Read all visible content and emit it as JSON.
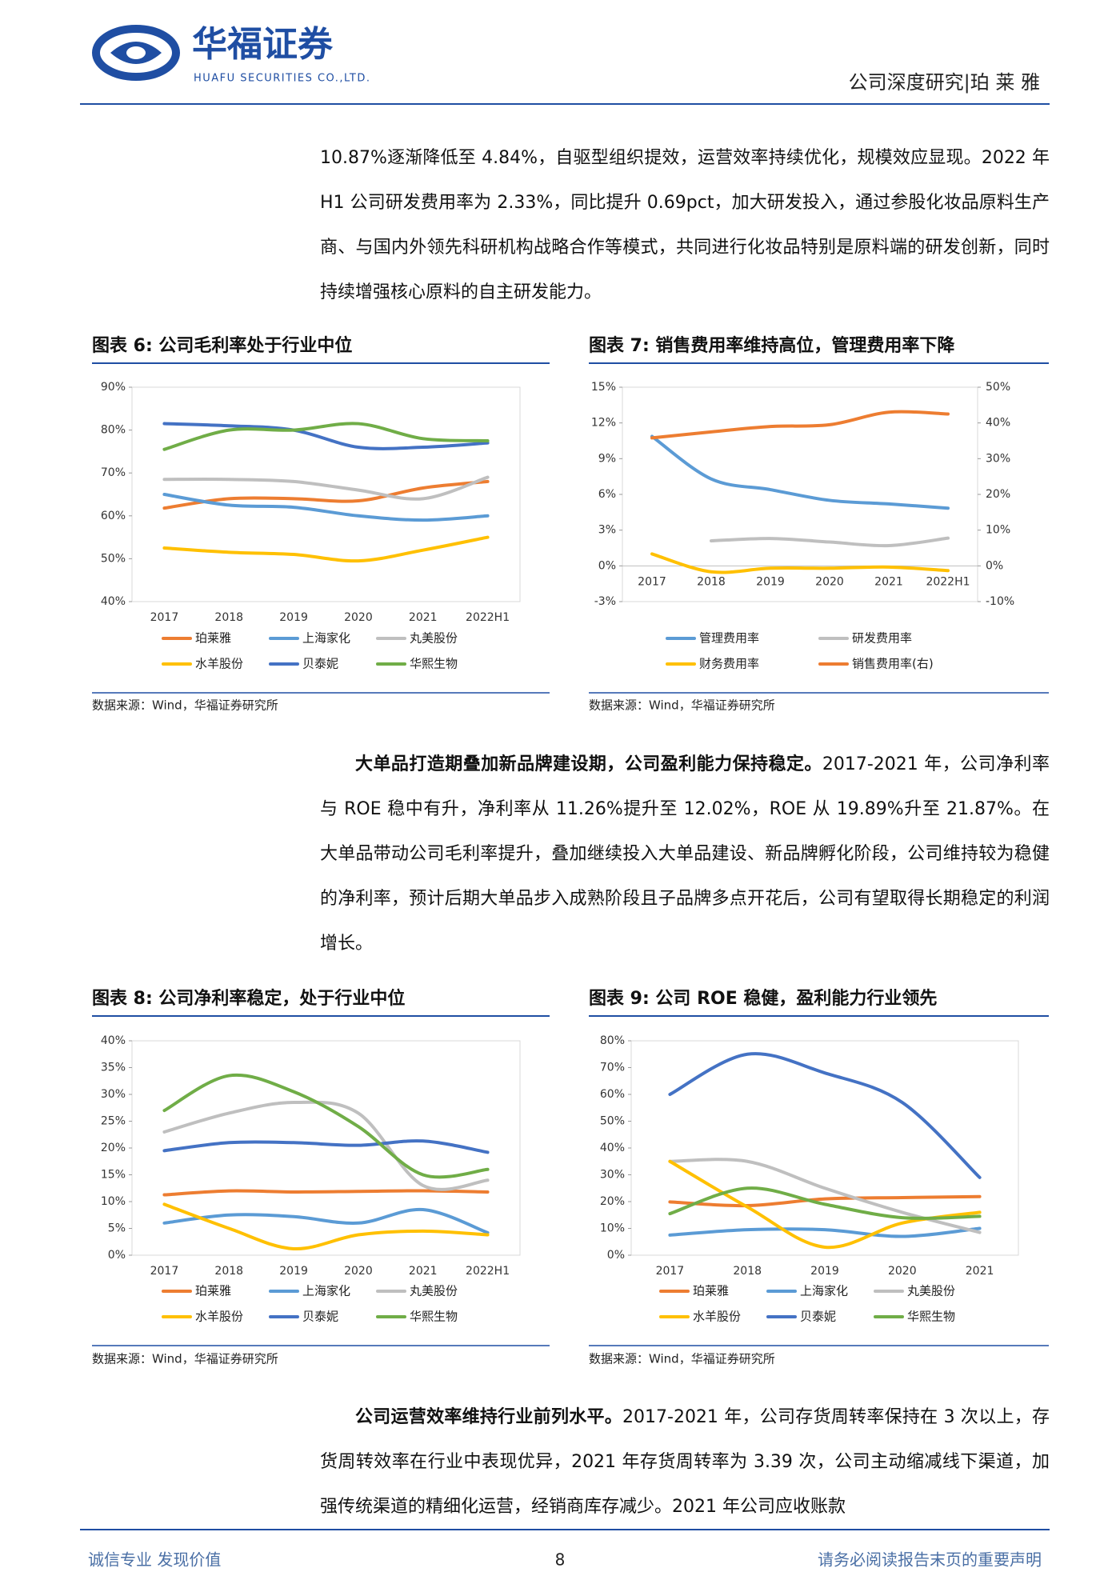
{
  "header": {
    "logo_cn": "华福证券",
    "logo_en": "HUAFU SECURITIES CO.,LTD.",
    "section": "公司深度研究|珀 莱 雅"
  },
  "paragraphs": [
    {
      "text": "10.87%逐渐降低至 4.84%，自驱型组织提效，运营效率持续优化，规模效应显现。2022 年 H1 公司研发费用率为 2.33%，同比提升 0.69pct，加大研发投入，通过参股化妆品原料生产商、与国内外领先科研机构战略合作等模式，共同进行化妆品特别是原料端的研发创新，同时持续增强核心原料的自主研发能力。"
    },
    {
      "lead": "大单品打造期叠加新品牌建设期，公司盈利能力保持稳定。",
      "text": "2017-2021 年，公司净利率与 ROE 稳中有升，净利率从 11.26%提升至 12.02%，ROE 从 19.89%升至 21.87%。在大单品带动公司毛利率提升，叠加继续投入大单品建设、新品牌孵化阶段，公司维持较为稳健的净利率，预计后期大单品步入成熟阶段且子品牌多点开花后，公司有望取得长期稳定的利润增长。"
    },
    {
      "lead": "公司运营效率维持行业前列水平。",
      "text": "2017-2021 年，公司存货周转率保持在 3 次以上，存货周转效率在行业中表现优异，2021 年存货周转率为 3.39 次，公司主动缩减线下渠道，加强传统渠道的精细化运营，经销商库存减少。2021 年公司应收账款"
    }
  ],
  "chart_data": [
    {
      "type": "line",
      "title": "图表 6:  公司毛利率处于行业中位",
      "source": "数据来源：Wind，华福证券研究所",
      "categories": [
        "2017",
        "2018",
        "2019",
        "2020",
        "2021",
        "2022H1"
      ],
      "ylim": [
        40,
        90
      ],
      "yticks": [
        {
          "value": 40,
          "label": "40%"
        },
        {
          "value": 50,
          "label": "50%"
        },
        {
          "value": 60,
          "label": "60%"
        },
        {
          "value": 70,
          "label": "70%"
        },
        {
          "value": 80,
          "label": "80%"
        },
        {
          "value": 90,
          "label": "90%"
        }
      ],
      "grid": false,
      "series": [
        {
          "name": "珀莱雅",
          "color": "#ED7D31",
          "values": [
            61.8,
            64,
            64,
            63.5,
            66.5,
            68
          ]
        },
        {
          "name": "上海家化",
          "color": "#5B9BD5",
          "values": [
            65,
            62.5,
            62,
            60,
            59,
            60
          ]
        },
        {
          "name": "丸美股份",
          "color": "#BFBFBF",
          "values": [
            68.5,
            68.5,
            68,
            66,
            64,
            69
          ]
        },
        {
          "name": "水羊股份",
          "color": "#FFC000",
          "values": [
            52.5,
            51.5,
            51,
            49.5,
            52,
            55
          ]
        },
        {
          "name": "贝泰妮",
          "color": "#4472C4",
          "values": [
            81.5,
            81,
            80,
            76,
            76,
            77
          ]
        },
        {
          "name": "华熙生物",
          "color": "#70AD47",
          "values": [
            75.5,
            80,
            80,
            81.5,
            78,
            77.5
          ]
        }
      ]
    },
    {
      "type": "line",
      "title": "图表 7:  销售费用率维持高位，管理费用率下降",
      "source": "数据来源：Wind，华福证券研究所",
      "categories": [
        "2017",
        "2018",
        "2019",
        "2020",
        "2021",
        "2022H1"
      ],
      "ylim": [
        -3,
        15
      ],
      "yticks": [
        {
          "value": -3,
          "label": "-3%"
        },
        {
          "value": 0,
          "label": "0%"
        },
        {
          "value": 3,
          "label": "3%"
        },
        {
          "value": 6,
          "label": "6%"
        },
        {
          "value": 9,
          "label": "9%"
        },
        {
          "value": 12,
          "label": "12%"
        },
        {
          "value": 15,
          "label": "15%"
        }
      ],
      "y2lim": [
        -10,
        50
      ],
      "y2ticks": [
        {
          "value": -10,
          "label": "-10%"
        },
        {
          "value": 0,
          "label": "0%"
        },
        {
          "value": 10,
          "label": "10%"
        },
        {
          "value": 20,
          "label": "20%"
        },
        {
          "value": 30,
          "label": "30%"
        },
        {
          "value": 40,
          "label": "40%"
        },
        {
          "value": 50,
          "label": "50%"
        }
      ],
      "grid": false,
      "series": [
        {
          "name": "管理费用率",
          "color": "#5B9BD5",
          "values": [
            10.87,
            7.3,
            6.4,
            5.5,
            5.2,
            4.84
          ]
        },
        {
          "name": "研发费用率",
          "color": "#BFBFBF",
          "values": [
            null,
            2.1,
            2.3,
            2.0,
            1.7,
            2.33
          ]
        },
        {
          "name": "财务费用率",
          "color": "#FFC000",
          "values": [
            1.0,
            -0.5,
            -0.2,
            -0.2,
            -0.1,
            -0.4
          ]
        },
        {
          "name": "销售费用率(右)",
          "color": "#ED7D31",
          "axis": "y2",
          "values": [
            35.8,
            37.5,
            39,
            39.5,
            43,
            42.5
          ]
        }
      ]
    },
    {
      "type": "line",
      "title": "图表 8:  公司净利率稳定，处于行业中位",
      "source": "数据来源：Wind，华福证券研究所",
      "categories": [
        "2017",
        "2018",
        "2019",
        "2020",
        "2021",
        "2022H1"
      ],
      "ylim": [
        0,
        40
      ],
      "yticks": [
        {
          "value": 0,
          "label": "0%"
        },
        {
          "value": 5,
          "label": "5%"
        },
        {
          "value": 10,
          "label": "10%"
        },
        {
          "value": 15,
          "label": "15%"
        },
        {
          "value": 20,
          "label": "20%"
        },
        {
          "value": 25,
          "label": "25%"
        },
        {
          "value": 30,
          "label": "30%"
        },
        {
          "value": 35,
          "label": "35%"
        },
        {
          "value": 40,
          "label": "40%"
        }
      ],
      "grid": false,
      "series": [
        {
          "name": "珀莱雅",
          "color": "#ED7D31",
          "values": [
            11.26,
            12,
            11.8,
            11.9,
            12.02,
            11.8
          ]
        },
        {
          "name": "上海家化",
          "color": "#5B9BD5",
          "values": [
            6,
            7.5,
            7.2,
            6,
            8.5,
            4.2
          ]
        },
        {
          "name": "丸美股份",
          "color": "#BFBFBF",
          "values": [
            23,
            26.5,
            28.5,
            26.5,
            13,
            14
          ]
        },
        {
          "name": "水羊股份",
          "color": "#FFC000",
          "values": [
            9.5,
            5,
            1.2,
            3.8,
            4.5,
            3.8
          ]
        },
        {
          "name": "贝泰妮",
          "color": "#4472C4",
          "values": [
            19.5,
            21,
            21,
            20.5,
            21.3,
            19.2
          ]
        },
        {
          "name": "华熙生物",
          "color": "#70AD47",
          "values": [
            27,
            33.5,
            30.5,
            24,
            15,
            16
          ]
        }
      ]
    },
    {
      "type": "line",
      "title": "图表 9:  公司 ROE 稳健，盈利能力行业领先",
      "source": "数据来源：Wind，华福证券研究所",
      "categories": [
        "2017",
        "2018",
        "2019",
        "2020",
        "2021"
      ],
      "ylim": [
        0,
        80
      ],
      "yticks": [
        {
          "value": 0,
          "label": "0%"
        },
        {
          "value": 10,
          "label": "10%"
        },
        {
          "value": 20,
          "label": "20%"
        },
        {
          "value": 30,
          "label": "30%"
        },
        {
          "value": 40,
          "label": "40%"
        },
        {
          "value": 50,
          "label": "50%"
        },
        {
          "value": 60,
          "label": "60%"
        },
        {
          "value": 70,
          "label": "70%"
        },
        {
          "value": 80,
          "label": "80%"
        }
      ],
      "grid": false,
      "series": [
        {
          "name": "珀莱雅",
          "color": "#ED7D31",
          "values": [
            19.89,
            18.5,
            21,
            21.5,
            21.87
          ]
        },
        {
          "name": "上海家化",
          "color": "#5B9BD5",
          "values": [
            7.5,
            9.5,
            9.5,
            7,
            10
          ]
        },
        {
          "name": "丸美股份",
          "color": "#BFBFBF",
          "values": [
            35,
            35,
            25,
            16,
            8.5
          ]
        },
        {
          "name": "水羊股份",
          "color": "#FFC000",
          "values": [
            35,
            18,
            3,
            12,
            16
          ]
        },
        {
          "name": "贝泰妮",
          "color": "#4472C4",
          "values": [
            60,
            75,
            68,
            57,
            29
          ]
        },
        {
          "name": "华熙生物",
          "color": "#70AD47",
          "values": [
            15.5,
            25,
            19,
            14,
            14.5
          ]
        }
      ]
    }
  ],
  "footer": {
    "left": "诚信专业  发现价值",
    "page": "8",
    "right": "请务必阅读报告末页的重要声明"
  }
}
